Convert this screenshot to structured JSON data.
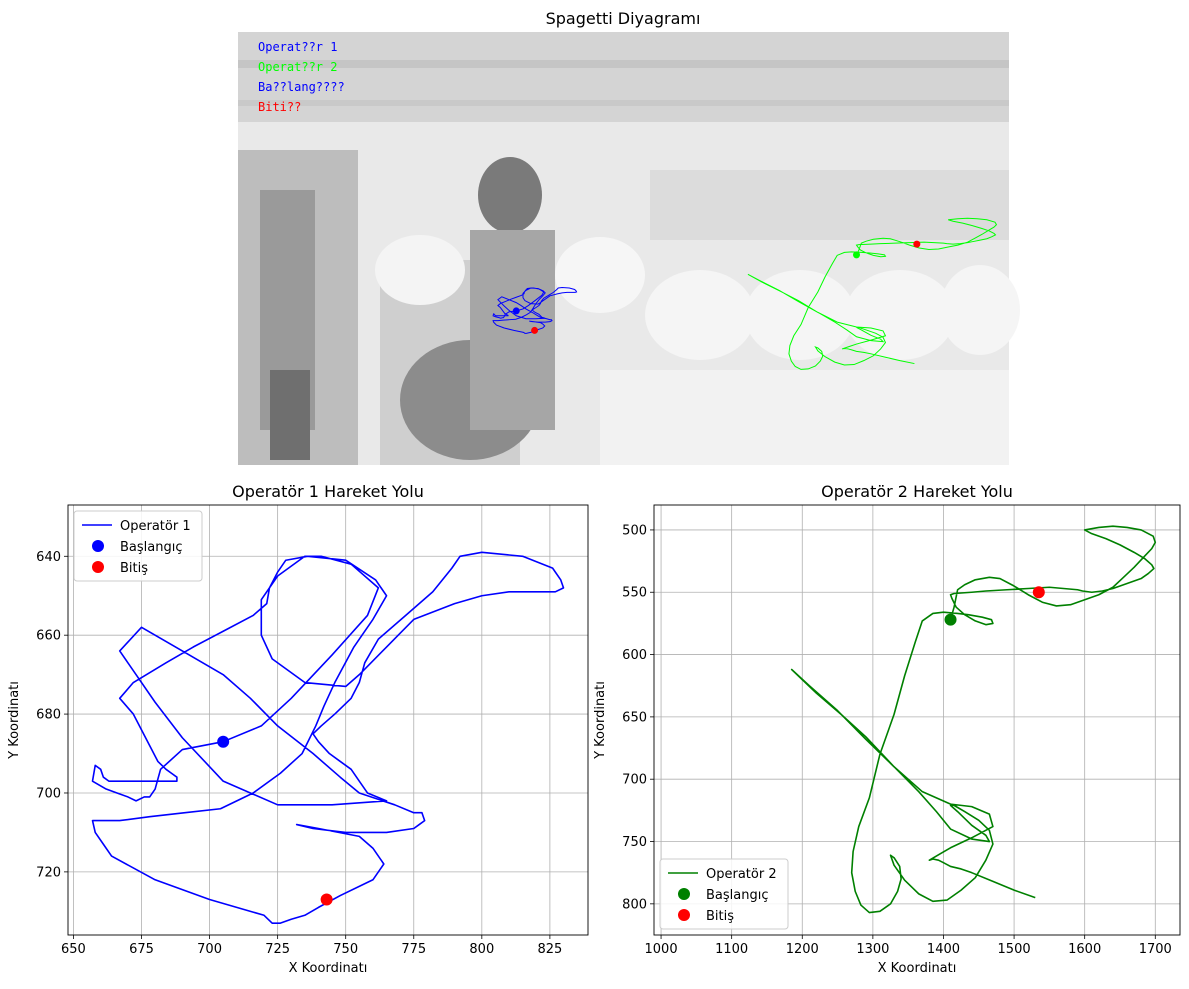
{
  "figure_title": "Spagetti Diyagramı",
  "colors": {
    "operator1": "#0000ff",
    "operator2": "#008000",
    "overlay_operator2": "#00ff00",
    "start_op1": "#0000ff",
    "start_op2": "#008000",
    "end": "#ff0000",
    "grid": "#b0b0b0"
  },
  "photo_legend": [
    {
      "text": "Operat??r 1",
      "color": "#0000ff"
    },
    {
      "text": "Operat??r 2",
      "color": "#00ff00"
    },
    {
      "text": "Ba??lang????",
      "color": "#0000ff"
    },
    {
      "text": "Biti??",
      "color": "#ff0000"
    }
  ],
  "chart_data": [
    {
      "type": "line",
      "title": "Operatör 1 Hareket Yolu",
      "xlabel": "X Koordinatı",
      "ylabel": "Y Koordinatı",
      "xlim": [
        648,
        839
      ],
      "ylim": [
        736,
        627
      ],
      "y_inverted": true,
      "grid": true,
      "legend_position": "top-left",
      "xticks": [
        650,
        675,
        700,
        725,
        750,
        775,
        800,
        825
      ],
      "yticks": [
        640,
        660,
        680,
        700,
        720
      ],
      "series": [
        {
          "name": "Operatör 1",
          "color": "#0000ff",
          "x": [
            705,
            719,
            730,
            745,
            758,
            762,
            752,
            741,
            735,
            725,
            719,
            719,
            723,
            735,
            750,
            755,
            765,
            775,
            790,
            800,
            810,
            822,
            827,
            830,
            829,
            826,
            815,
            800,
            792,
            789,
            782,
            772,
            762,
            757,
            755,
            752,
            746,
            741,
            738,
            740,
            744,
            748,
            752,
            755,
            758,
            765,
            745,
            725,
            705,
            690,
            680,
            667,
            675,
            690,
            705,
            715,
            725,
            738,
            748,
            755,
            768,
            775,
            778,
            779,
            777,
            775,
            765,
            750,
            738,
            732,
            740,
            755,
            760,
            764,
            760,
            748,
            740,
            735,
            730,
            726,
            723,
            720,
            700,
            680,
            664,
            661,
            658,
            657,
            663,
            667,
            678,
            691,
            704,
            716,
            726,
            734,
            739,
            742,
            746,
            753,
            760,
            765,
            761,
            750,
            736,
            728,
            725,
            722,
            721,
            716,
            705,
            694,
            684,
            672,
            667,
            672,
            675,
            678,
            681,
            684,
            686,
            688,
            688,
            684,
            676,
            669,
            665,
            663,
            661,
            660,
            658,
            657,
            662,
            666,
            670,
            673,
            676,
            678,
            680,
            682,
            690,
            705
          ],
          "y": [
            687,
            683,
            676,
            665,
            655,
            648,
            642,
            640,
            640,
            645,
            651,
            660,
            666,
            672,
            673,
            670,
            663,
            656,
            652,
            650,
            649,
            649,
            649,
            648,
            646,
            643,
            640,
            639,
            640,
            643,
            649,
            655,
            661,
            667,
            672,
            676,
            680,
            683,
            685,
            687,
            690,
            692,
            694,
            697,
            700,
            702,
            703,
            703,
            697,
            686,
            677,
            664,
            658,
            664,
            670,
            676,
            683,
            690,
            696,
            700,
            703,
            705,
            705,
            707,
            708,
            709,
            710,
            710,
            709,
            708,
            709,
            711,
            714,
            718,
            722,
            726,
            729,
            731,
            732,
            733,
            733,
            731,
            727,
            722,
            716,
            713,
            710,
            707,
            707,
            707,
            706,
            705,
            704,
            700,
            695,
            690,
            683,
            678,
            672,
            663,
            656,
            650,
            646,
            641,
            640,
            641,
            644,
            648,
            652,
            655,
            659,
            663,
            667,
            672,
            676,
            680,
            684,
            688,
            692,
            694,
            695,
            696,
            697,
            697,
            697,
            697,
            697,
            697,
            696,
            694,
            693,
            697,
            699,
            700,
            701,
            702,
            701,
            701,
            699,
            694,
            689,
            687
          ],
          "marker": false
        },
        {
          "name": "Başlangıç",
          "x": [
            705
          ],
          "y": [
            687
          ],
          "color": "#0000ff",
          "marker": true
        },
        {
          "name": "Bitiş",
          "x": [
            743
          ],
          "y": [
            727
          ],
          "color": "#ff0000",
          "marker": true
        }
      ]
    },
    {
      "type": "line",
      "title": "Operatör 2 Hareket Yolu",
      "xlabel": "X Koordinatı",
      "ylabel": "Y Koordinatı",
      "xlim": [
        990,
        1735
      ],
      "ylim": [
        825,
        480
      ],
      "y_inverted": true,
      "grid": true,
      "legend_position": "bottom-left",
      "xticks": [
        1000,
        1100,
        1200,
        1300,
        1400,
        1500,
        1600,
        1700
      ],
      "yticks": [
        500,
        550,
        600,
        650,
        700,
        750,
        800
      ],
      "series": [
        {
          "name": "Operatör 2",
          "color": "#008000",
          "x": [
            1410,
            1415,
            1420,
            1430,
            1445,
            1465,
            1480,
            1500,
            1520,
            1540,
            1560,
            1580,
            1600,
            1620,
            1640,
            1655,
            1670,
            1685,
            1695,
            1700,
            1697,
            1680,
            1660,
            1640,
            1620,
            1600,
            1610,
            1630,
            1650,
            1670,
            1685,
            1695,
            1698,
            1690,
            1680,
            1665,
            1650,
            1640,
            1625,
            1610,
            1597,
            1590,
            1570,
            1550,
            1520,
            1490,
            1460,
            1440,
            1415,
            1410,
            1412,
            1418,
            1430,
            1445,
            1460,
            1470,
            1468,
            1455,
            1435,
            1420,
            1400,
            1385,
            1370,
            1360,
            1345,
            1330,
            1310,
            1295,
            1280,
            1272,
            1270,
            1275,
            1283,
            1295,
            1310,
            1325,
            1335,
            1340,
            1338,
            1330,
            1325,
            1330,
            1345,
            1365,
            1385,
            1405,
            1425,
            1445,
            1460,
            1470,
            1465,
            1450,
            1430,
            1415,
            1410,
            1420,
            1440,
            1460,
            1465,
            1440,
            1410,
            1390,
            1365,
            1330,
            1290,
            1255,
            1220,
            1185,
            1210,
            1250,
            1290,
            1330,
            1370,
            1410,
            1440,
            1465,
            1470,
            1440,
            1410,
            1395,
            1380,
            1385,
            1393,
            1400,
            1410,
            1425,
            1440,
            1470,
            1500,
            1530
          ],
          "y": [
            572,
            562,
            548,
            544,
            540,
            538,
            539,
            545,
            552,
            558,
            561,
            560,
            556,
            552,
            546,
            538,
            530,
            521,
            515,
            510,
            505,
            500,
            498,
            497,
            498,
            500,
            503,
            507,
            512,
            518,
            523,
            528,
            531,
            535,
            539,
            542,
            545,
            547,
            549,
            550,
            549,
            548,
            547,
            546,
            547,
            548,
            549,
            550,
            551,
            552,
            555,
            562,
            568,
            573,
            576,
            575,
            572,
            570,
            568,
            567,
            566,
            567,
            573,
            590,
            617,
            648,
            680,
            715,
            738,
            758,
            775,
            790,
            801,
            807,
            806,
            800,
            790,
            780,
            770,
            763,
            761,
            769,
            781,
            792,
            798,
            797,
            789,
            779,
            765,
            752,
            741,
            733,
            726,
            721,
            721,
            726,
            737,
            745,
            750,
            748,
            740,
            726,
            710,
            690,
            666,
            648,
            631,
            612,
            625,
            645,
            668,
            690,
            710,
            720,
            722,
            728,
            738,
            747,
            755,
            760,
            765,
            764,
            765,
            767,
            770,
            772,
            775,
            782,
            789,
            795
          ],
          "marker": false
        },
        {
          "name": "Başlangıç",
          "x": [
            1410
          ],
          "y": [
            572
          ],
          "color": "#008000",
          "marker": true
        },
        {
          "name": "Bitiş",
          "x": [
            1535
          ],
          "y": [
            550
          ],
          "color": "#ff0000",
          "marker": true
        }
      ]
    }
  ]
}
